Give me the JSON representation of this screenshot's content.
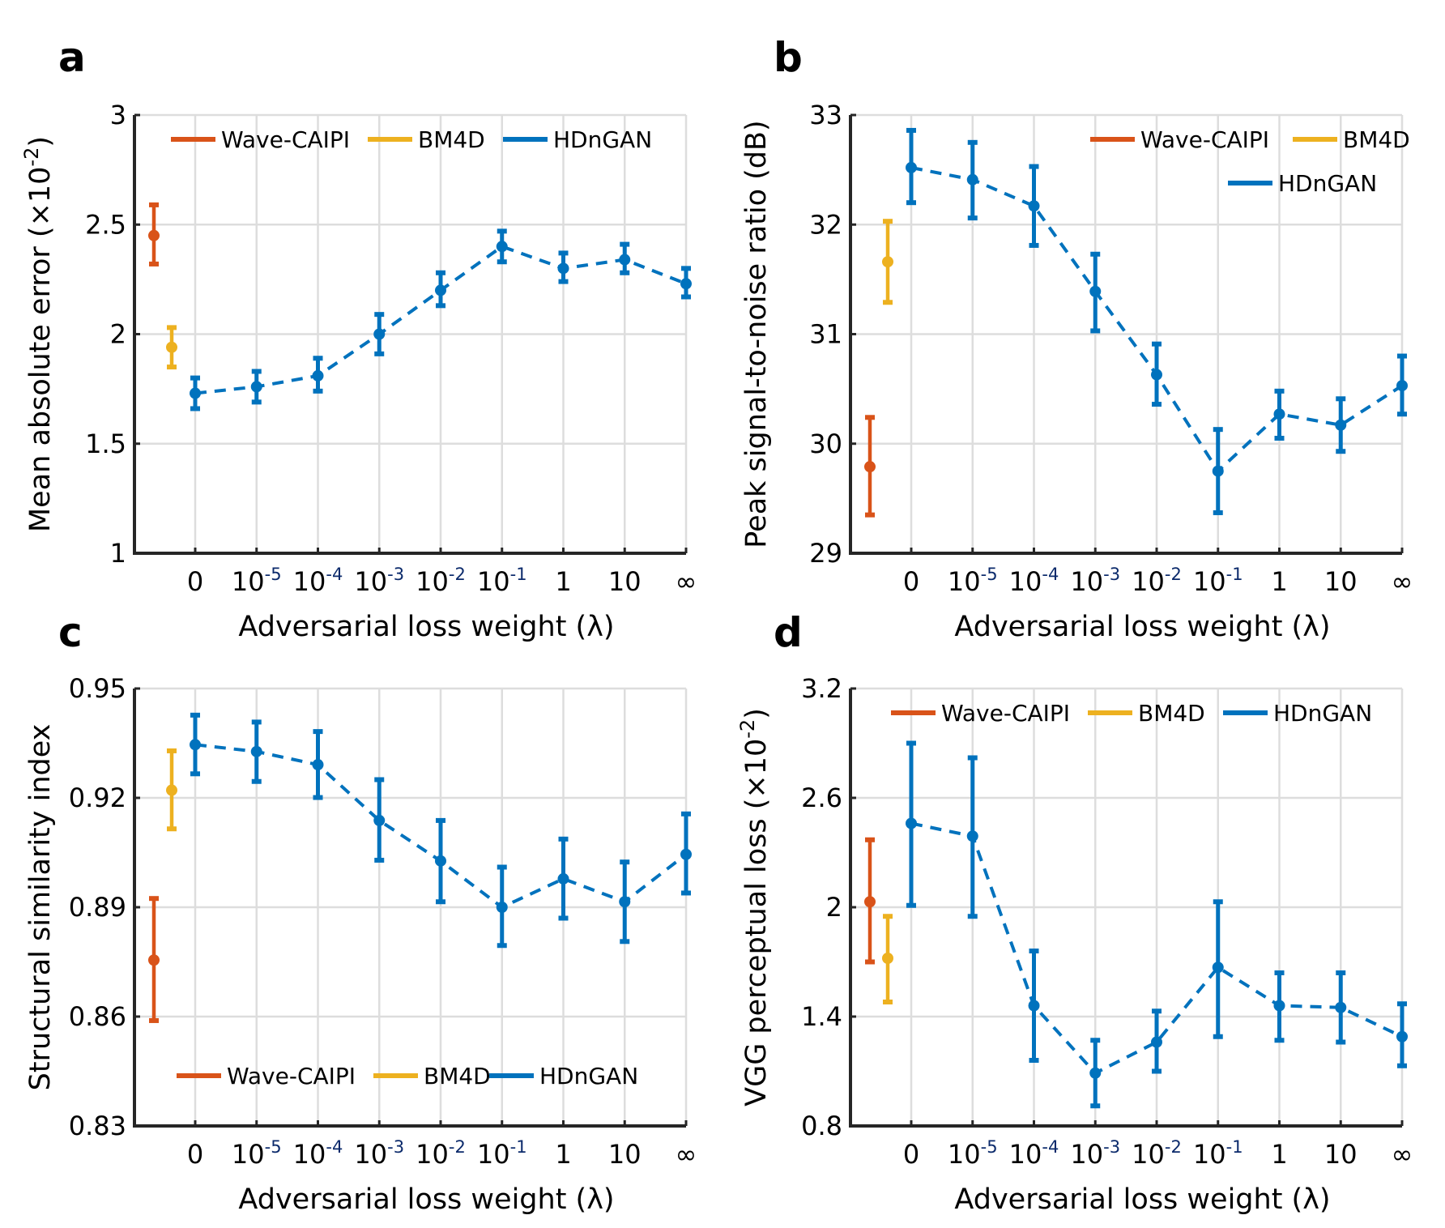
{
  "figure": {
    "panel_letters": [
      "a",
      "b",
      "c",
      "d"
    ]
  },
  "colors": {
    "wave_caipi": "#D95319",
    "bm4d": "#EDB120",
    "hdngan": "#0072BD"
  },
  "chart_data": [
    {
      "type": "line",
      "panel": "a",
      "title": "",
      "xlabel": "Adversarial loss weight (λ)",
      "ylabel": "Mean absolute error (×10^-2)",
      "ylim": [
        1,
        3
      ],
      "yticks": [
        "1",
        "1.5",
        "2",
        "2.5",
        "3"
      ],
      "ytick_values": [
        1,
        1.5,
        2,
        2.5,
        3
      ],
      "grid": true,
      "legend": {
        "placement": "top",
        "layout": "one-row",
        "entries": [
          "Wave-CAIPI",
          "BM4D",
          "HDnGAN"
        ]
      },
      "categories": [
        {
          "base": "0",
          "exp": ""
        },
        {
          "base": "10",
          "exp": "-5"
        },
        {
          "base": "10",
          "exp": "-4"
        },
        {
          "base": "10",
          "exp": "-3"
        },
        {
          "base": "10",
          "exp": "-2"
        },
        {
          "base": "10",
          "exp": "-1"
        },
        {
          "base": "1",
          "exp": ""
        },
        {
          "base": "10",
          "exp": ""
        },
        {
          "base": "∞",
          "exp": ""
        }
      ],
      "baselines": [
        {
          "name": "Wave-CAIPI",
          "value": 2.45,
          "err_low": 2.32,
          "err_high": 2.59
        },
        {
          "name": "BM4D",
          "value": 1.94,
          "err_low": 1.85,
          "err_high": 2.03
        }
      ],
      "series": [
        {
          "name": "HDnGAN",
          "values": [
            1.73,
            1.76,
            1.81,
            2.0,
            2.2,
            2.4,
            2.3,
            2.34,
            2.23
          ],
          "err_low": [
            1.66,
            1.69,
            1.74,
            1.91,
            2.13,
            2.33,
            2.24,
            2.28,
            2.17
          ],
          "err_high": [
            1.8,
            1.83,
            1.89,
            2.09,
            2.28,
            2.47,
            2.37,
            2.41,
            2.3
          ]
        }
      ]
    },
    {
      "type": "line",
      "panel": "b",
      "title": "",
      "xlabel": "Adversarial loss weight (λ)",
      "ylabel": "Peak signal-to-noise ratio (dB)",
      "ylim": [
        29,
        33
      ],
      "yticks": [
        "29",
        "30",
        "31",
        "32",
        "33"
      ],
      "ytick_values": [
        29,
        30,
        31,
        32,
        33
      ],
      "grid": true,
      "legend": {
        "placement": "top-right",
        "layout": "two-row",
        "entries": [
          "Wave-CAIPI",
          "BM4D",
          "HDnGAN"
        ]
      },
      "categories": [
        {
          "base": "0",
          "exp": ""
        },
        {
          "base": "10",
          "exp": "-5"
        },
        {
          "base": "10",
          "exp": "-4"
        },
        {
          "base": "10",
          "exp": "-3"
        },
        {
          "base": "10",
          "exp": "-2"
        },
        {
          "base": "10",
          "exp": "-1"
        },
        {
          "base": "1",
          "exp": ""
        },
        {
          "base": "10",
          "exp": ""
        },
        {
          "base": "∞",
          "exp": ""
        }
      ],
      "baselines": [
        {
          "name": "Wave-CAIPI",
          "value": 29.79,
          "err_low": 29.35,
          "err_high": 30.24
        },
        {
          "name": "BM4D",
          "value": 31.66,
          "err_low": 31.29,
          "err_high": 32.03
        }
      ],
      "series": [
        {
          "name": "HDnGAN",
          "values": [
            32.52,
            32.41,
            32.17,
            31.39,
            30.63,
            29.75,
            30.27,
            30.17,
            30.53
          ],
          "err_low": [
            32.2,
            32.06,
            31.81,
            31.03,
            30.36,
            29.37,
            30.05,
            29.93,
            30.27
          ],
          "err_high": [
            32.86,
            32.75,
            32.53,
            31.73,
            30.91,
            30.13,
            30.48,
            30.41,
            30.8
          ]
        }
      ]
    },
    {
      "type": "line",
      "panel": "c",
      "title": "",
      "xlabel": "Adversarial loss weight (λ)",
      "ylabel": "Structural similarity index",
      "ylim": [
        0.83,
        0.95
      ],
      "yticks": [
        "0.83",
        "0.86",
        "0.89",
        "0.92",
        "0.95"
      ],
      "ytick_values": [
        0.83,
        0.86,
        0.89,
        0.92,
        0.95
      ],
      "grid": true,
      "legend": {
        "placement": "bottom",
        "layout": "one-row",
        "entries": [
          "Wave-CAIPI",
          "BM4D",
          "HDnGAN"
        ]
      },
      "categories": [
        {
          "base": "0",
          "exp": ""
        },
        {
          "base": "10",
          "exp": "-5"
        },
        {
          "base": "10",
          "exp": "-4"
        },
        {
          "base": "10",
          "exp": "-3"
        },
        {
          "base": "10",
          "exp": "-2"
        },
        {
          "base": "10",
          "exp": "-1"
        },
        {
          "base": "1",
          "exp": ""
        },
        {
          "base": "10",
          "exp": ""
        },
        {
          "base": "∞",
          "exp": ""
        }
      ],
      "baselines": [
        {
          "name": "Wave-CAIPI",
          "value": 0.8755,
          "err_low": 0.8589,
          "err_high": 0.8924
        },
        {
          "name": "BM4D",
          "value": 0.9221,
          "err_low": 0.9115,
          "err_high": 0.9329
        }
      ],
      "series": [
        {
          "name": "HDnGAN",
          "values": [
            0.9346,
            0.9327,
            0.9291,
            0.9138,
            0.9027,
            0.89,
            0.8978,
            0.8915,
            0.9045
          ],
          "err_low": [
            0.9266,
            0.9245,
            0.9201,
            0.9029,
            0.8915,
            0.8795,
            0.887,
            0.8806,
            0.8939
          ],
          "err_high": [
            0.9427,
            0.9408,
            0.9382,
            0.925,
            0.9138,
            0.901,
            0.9087,
            0.9024,
            0.9156
          ]
        }
      ]
    },
    {
      "type": "line",
      "panel": "d",
      "title": "",
      "xlabel": "Adversarial loss weight (λ)",
      "ylabel": "VGG perceptual loss (×10^-2)",
      "ylim": [
        0.8,
        3.2
      ],
      "yticks": [
        "0.8",
        "1.4",
        "2",
        "2.6",
        "3.2"
      ],
      "ytick_values": [
        0.8,
        1.4,
        2.0,
        2.6,
        3.2
      ],
      "grid": true,
      "legend": {
        "placement": "top",
        "layout": "one-row",
        "entries": [
          "Wave-CAIPI",
          "BM4D",
          "HDnGAN"
        ]
      },
      "categories": [
        {
          "base": "0",
          "exp": ""
        },
        {
          "base": "10",
          "exp": "-5"
        },
        {
          "base": "10",
          "exp": "-4"
        },
        {
          "base": "10",
          "exp": "-3"
        },
        {
          "base": "10",
          "exp": "-2"
        },
        {
          "base": "10",
          "exp": "-1"
        },
        {
          "base": "1",
          "exp": ""
        },
        {
          "base": "10",
          "exp": ""
        },
        {
          "base": "∞",
          "exp": ""
        }
      ],
      "baselines": [
        {
          "name": "Wave-CAIPI",
          "value": 2.03,
          "err_low": 1.7,
          "err_high": 2.37
        },
        {
          "name": "BM4D",
          "value": 1.72,
          "err_low": 1.48,
          "err_high": 1.95
        }
      ],
      "series": [
        {
          "name": "HDnGAN",
          "values": [
            2.46,
            2.39,
            1.46,
            1.09,
            1.26,
            1.67,
            1.46,
            1.45,
            1.29
          ],
          "err_low": [
            2.01,
            1.95,
            1.16,
            0.91,
            1.1,
            1.29,
            1.27,
            1.26,
            1.13
          ],
          "err_high": [
            2.9,
            2.82,
            1.76,
            1.27,
            1.43,
            2.03,
            1.64,
            1.64,
            1.47
          ]
        }
      ]
    }
  ]
}
